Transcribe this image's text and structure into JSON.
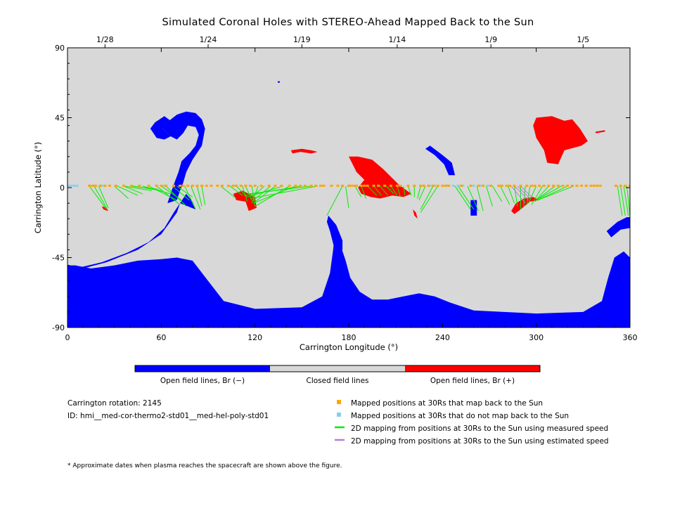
{
  "chart_data": {
    "type": "scatter",
    "title": "Simulated Coronal Holes with STEREO-Ahead Mapped Back to the Sun",
    "xlabel": "Carrington Longitude (°)",
    "ylabel": "Carrington Latitude (°)",
    "xlim": [
      0,
      360
    ],
    "ylim": [
      -90,
      90
    ],
    "x_ticks": [
      0,
      60,
      120,
      180,
      240,
      300,
      360
    ],
    "y_ticks": [
      -90,
      -45,
      0,
      45,
      90
    ],
    "top_axis": {
      "ticks": [
        {
          "x": 24,
          "label": "1/28"
        },
        {
          "x": 90,
          "label": "1/24"
        },
        {
          "x": 150,
          "label": "1/19"
        },
        {
          "x": 211,
          "label": "1/14"
        },
        {
          "x": 271,
          "label": "1/9"
        },
        {
          "x": 330,
          "label": "1/5"
        }
      ]
    },
    "colors": {
      "open_negative": "#0000ff",
      "closed": "#d8d8d8",
      "open_positive": "#ff0000",
      "mapped": "#ffa500",
      "unmapped": "#87ceeb",
      "measured_line": "#00ee00",
      "estimated_line": "#b57edc"
    },
    "regions": [
      {
        "name": "south-polar-hole",
        "polarity": "negative",
        "points": [
          [
            0,
            -90
          ],
          [
            360,
            -90
          ],
          [
            360,
            -45
          ],
          [
            356,
            -41
          ],
          [
            350,
            -45
          ],
          [
            346,
            -58
          ],
          [
            342,
            -73
          ],
          [
            330,
            -80
          ],
          [
            300,
            -81
          ],
          [
            260,
            -79
          ],
          [
            245,
            -74
          ],
          [
            235,
            -70
          ],
          [
            225,
            -68
          ],
          [
            215,
            -70
          ],
          [
            205,
            -72
          ],
          [
            195,
            -72
          ],
          [
            187,
            -67
          ],
          [
            181,
            -58
          ],
          [
            178,
            -47
          ],
          [
            174,
            -35
          ],
          [
            171,
            -30
          ],
          [
            170,
            -40
          ],
          [
            168,
            -55
          ],
          [
            163,
            -70
          ],
          [
            150,
            -77
          ],
          [
            120,
            -78
          ],
          [
            100,
            -73
          ],
          [
            90,
            -60
          ],
          [
            80,
            -47
          ],
          [
            70,
            -45
          ],
          [
            60,
            -46
          ],
          [
            45,
            -47
          ],
          [
            30,
            -50
          ],
          [
            15,
            -52
          ],
          [
            5,
            -50
          ],
          [
            0,
            -50
          ]
        ]
      },
      {
        "name": "south-hole-extension",
        "polarity": "negative",
        "points": [
          [
            5,
            -52
          ],
          [
            22,
            -48
          ],
          [
            38,
            -42
          ],
          [
            52,
            -35
          ],
          [
            62,
            -26
          ],
          [
            68,
            -16
          ],
          [
            72,
            -10
          ],
          [
            76,
            -4
          ],
          [
            80,
            -9
          ],
          [
            82,
            -14
          ],
          [
            77,
            -12
          ],
          [
            72,
            -10
          ],
          [
            70,
            -16
          ],
          [
            60,
            -30
          ],
          [
            45,
            -40
          ],
          [
            25,
            -48
          ],
          [
            10,
            -52
          ]
        ]
      },
      {
        "name": "west-hole-body",
        "polarity": "negative",
        "points": [
          [
            64,
            -10
          ],
          [
            68,
            2
          ],
          [
            71,
            10
          ],
          [
            73,
            17
          ],
          [
            78,
            22
          ],
          [
            82,
            27
          ],
          [
            84,
            34
          ],
          [
            82,
            39
          ],
          [
            77,
            40
          ],
          [
            74,
            35
          ],
          [
            70,
            31
          ],
          [
            66,
            33
          ],
          [
            61,
            38
          ],
          [
            65,
            43
          ],
          [
            70,
            47
          ],
          [
            76,
            49
          ],
          [
            82,
            48
          ],
          [
            86,
            44
          ],
          [
            88,
            38
          ],
          [
            86,
            27
          ],
          [
            80,
            18
          ],
          [
            76,
            10
          ],
          [
            74,
            3
          ],
          [
            72,
            -2
          ],
          [
            70,
            -8
          ]
        ]
      },
      {
        "name": "west-hole-lobe",
        "polarity": "negative",
        "points": [
          [
            62,
            46
          ],
          [
            56,
            42
          ],
          [
            53,
            38
          ],
          [
            57,
            32
          ],
          [
            62,
            31
          ],
          [
            66,
            33
          ],
          [
            61,
            38
          ],
          [
            66,
            43
          ]
        ]
      },
      {
        "name": "small-hole-near-55",
        "polarity": "negative",
        "points": [
          [
            232,
            27
          ],
          [
            240,
            21
          ],
          [
            246,
            16
          ],
          [
            248,
            8
          ],
          [
            244,
            8
          ],
          [
            241,
            15
          ],
          [
            235,
            21
          ],
          [
            229,
            25
          ]
        ]
      },
      {
        "name": "small-hole-near-70",
        "polarity": "negative",
        "points": [
          [
            258,
            -8
          ],
          [
            262,
            -8
          ],
          [
            262,
            -18
          ],
          [
            258,
            -18
          ]
        ]
      },
      {
        "name": "east-south-arm",
        "polarity": "negative",
        "points": [
          [
            345,
            -28
          ],
          [
            352,
            -22
          ],
          [
            358,
            -19
          ],
          [
            360,
            -19
          ],
          [
            360,
            -26
          ],
          [
            354,
            -27
          ],
          [
            348,
            -32
          ]
        ]
      },
      {
        "name": "mid-arm-to-south",
        "polarity": "negative",
        "points": [
          [
            167,
            -18
          ],
          [
            172,
            -24
          ],
          [
            176,
            -34
          ],
          [
            176,
            -40
          ],
          [
            172,
            -44
          ],
          [
            170,
            -36
          ],
          [
            168,
            -28
          ],
          [
            166,
            -22
          ]
        ]
      },
      {
        "name": "northeast-hole",
        "polarity": "positive",
        "points": [
          [
            300,
            45
          ],
          [
            310,
            46
          ],
          [
            318,
            43
          ],
          [
            323,
            44
          ],
          [
            328,
            38
          ],
          [
            333,
            30
          ],
          [
            329,
            27
          ],
          [
            318,
            24
          ],
          [
            314,
            15
          ],
          [
            307,
            16
          ],
          [
            305,
            24
          ],
          [
            300,
            32
          ],
          [
            298,
            40
          ]
        ]
      },
      {
        "name": "central-hole",
        "polarity": "positive",
        "points": [
          [
            180,
            20
          ],
          [
            186,
            20
          ],
          [
            195,
            18
          ],
          [
            202,
            12
          ],
          [
            208,
            6
          ],
          [
            212,
            2
          ],
          [
            216,
            -1
          ],
          [
            220,
            -4
          ],
          [
            215,
            -6
          ],
          [
            208,
            -5
          ],
          [
            200,
            -7
          ],
          [
            194,
            -6
          ],
          [
            188,
            -4
          ],
          [
            186,
            0
          ],
          [
            190,
            5
          ],
          [
            185,
            10
          ]
        ]
      },
      {
        "name": "hole-near-120",
        "polarity": "positive",
        "points": [
          [
            106,
            -4
          ],
          [
            112,
            -2
          ],
          [
            116,
            -4
          ],
          [
            120,
            -6
          ],
          [
            121,
            -13
          ],
          [
            116,
            -15
          ],
          [
            114,
            -9
          ],
          [
            108,
            -8
          ]
        ]
      },
      {
        "name": "hole-near-290",
        "polarity": "positive",
        "points": [
          [
            284,
            -15
          ],
          [
            287,
            -10
          ],
          [
            292,
            -7
          ],
          [
            298,
            -6
          ],
          [
            302,
            -8
          ],
          [
            296,
            -9
          ],
          [
            290,
            -14
          ],
          [
            286,
            -17
          ]
        ]
      },
      {
        "name": "streak-near-150",
        "polarity": "positive",
        "points": [
          [
            143,
            24
          ],
          [
            150,
            25
          ],
          [
            156,
            24
          ],
          [
            160,
            23
          ],
          [
            156,
            22
          ],
          [
            149,
            23
          ],
          [
            144,
            22
          ]
        ]
      },
      {
        "name": "streak-near-225",
        "polarity": "positive",
        "points": [
          [
            221,
            -14
          ],
          [
            223,
            -16
          ],
          [
            224,
            -20
          ],
          [
            222,
            -18
          ]
        ]
      },
      {
        "name": "streak-near-25",
        "polarity": "positive",
        "points": [
          [
            22,
            -12
          ],
          [
            25,
            -13
          ],
          [
            26,
            -15
          ],
          [
            23,
            -14
          ]
        ]
      },
      {
        "name": "wisp-near-345",
        "polarity": "positive",
        "points": [
          [
            338,
            36
          ],
          [
            344,
            37
          ],
          [
            344,
            36
          ],
          [
            338,
            35
          ]
        ]
      }
    ],
    "mapped_points_lat": 1,
    "mapped_points_x": [
      14,
      16,
      18,
      21,
      24,
      27,
      31,
      36,
      41,
      46,
      52,
      57,
      60,
      63,
      68,
      72,
      74,
      77,
      80,
      83,
      86,
      89,
      92,
      96,
      99,
      103,
      106,
      108,
      111,
      114,
      117,
      120,
      124,
      129,
      133,
      137,
      142,
      146,
      149,
      152,
      156,
      159,
      162,
      164,
      169,
      173,
      176,
      180,
      181,
      183,
      185,
      188,
      190,
      192,
      196,
      199,
      203,
      207,
      211,
      213,
      218,
      222,
      226,
      228,
      231,
      234,
      237,
      240,
      242,
      244,
      252,
      258,
      263,
      266,
      271,
      276,
      278,
      281,
      283,
      286,
      290,
      294,
      297,
      299,
      302,
      305,
      308,
      311,
      314,
      317,
      320,
      323,
      326,
      329,
      332,
      335,
      337,
      339,
      341,
      351,
      354,
      357,
      360
    ],
    "unmapped_points_x": [
      0,
      2,
      4,
      6,
      17,
      22,
      62,
      226,
      232,
      235,
      243,
      247,
      250,
      253,
      260,
      264,
      269
    ],
    "mappings_measured": [
      [
        14,
        25,
        -14
      ],
      [
        17,
        25,
        -13
      ],
      [
        20,
        26,
        -13
      ],
      [
        30,
        39,
        -7
      ],
      [
        32,
        45,
        -5
      ],
      [
        36,
        48,
        -4
      ],
      [
        36,
        54,
        -2
      ],
      [
        40,
        58,
        -1
      ],
      [
        42,
        60,
        -2
      ],
      [
        48,
        66,
        -4
      ],
      [
        52,
        70,
        -8
      ],
      [
        57,
        72,
        -11
      ],
      [
        60,
        73,
        -8
      ],
      [
        63,
        76,
        -12
      ],
      [
        67,
        78,
        -8
      ],
      [
        70,
        80,
        -6
      ],
      [
        75,
        82,
        -14
      ],
      [
        79,
        85,
        -14
      ],
      [
        83,
        86,
        -12
      ],
      [
        86,
        88,
        -11
      ],
      [
        98,
        108,
        -7
      ],
      [
        104,
        112,
        -5
      ],
      [
        108,
        115,
        -6
      ],
      [
        112,
        115,
        -9
      ],
      [
        114,
        118,
        -8
      ],
      [
        118,
        120,
        -12
      ],
      [
        122,
        118,
        -10
      ],
      [
        126,
        118,
        -6
      ],
      [
        130,
        118,
        -9
      ],
      [
        133,
        119,
        -10
      ],
      [
        138,
        115,
        -6
      ],
      [
        142,
        120,
        -12
      ],
      [
        146,
        119,
        -10
      ],
      [
        150,
        113,
        -5
      ],
      [
        156,
        116,
        -4
      ],
      [
        160,
        117,
        -7
      ],
      [
        176,
        166,
        -18
      ],
      [
        178,
        180,
        -13
      ],
      [
        184,
        188,
        -6
      ],
      [
        188,
        191,
        -7
      ],
      [
        192,
        198,
        -5
      ],
      [
        196,
        201,
        -5
      ],
      [
        200,
        205,
        -5
      ],
      [
        204,
        209,
        -4
      ],
      [
        207,
        211,
        -5
      ],
      [
        211,
        213,
        -6
      ],
      [
        215,
        216,
        -5
      ],
      [
        218,
        220,
        -5
      ],
      [
        222,
        222,
        -6
      ],
      [
        226,
        224,
        -7
      ],
      [
        229,
        225,
        -8
      ],
      [
        234,
        226,
        -14
      ],
      [
        237,
        226,
        -16
      ],
      [
        248,
        258,
        -14
      ],
      [
        250,
        260,
        -14
      ],
      [
        256,
        263,
        -15
      ],
      [
        262,
        266,
        -15
      ],
      [
        268,
        272,
        -12
      ],
      [
        272,
        278,
        -9
      ],
      [
        277,
        283,
        -11
      ],
      [
        282,
        286,
        -10
      ],
      [
        286,
        288,
        -12
      ],
      [
        290,
        290,
        -14
      ],
      [
        293,
        292,
        -12
      ],
      [
        296,
        294,
        -11
      ],
      [
        300,
        295,
        -10
      ],
      [
        304,
        297,
        -11
      ],
      [
        308,
        299,
        -9
      ],
      [
        312,
        300,
        -8
      ],
      [
        316,
        300,
        -8
      ],
      [
        320,
        301,
        -8
      ],
      [
        324,
        301,
        -8
      ],
      [
        352,
        355,
        -18
      ],
      [
        354,
        357,
        -18
      ],
      [
        356,
        359,
        -18
      ],
      [
        358,
        360,
        -18
      ]
    ],
    "mappings_estimated": [
      [
        284,
        293,
        -10
      ],
      [
        286,
        295,
        -8
      ],
      [
        288,
        296,
        -7
      ],
      [
        290,
        297,
        -6
      ]
    ]
  },
  "colorbar": {
    "segments": [
      {
        "label": "Open field lines, Br (−)",
        "color": "#0000ff"
      },
      {
        "label": "Closed field lines",
        "color": "#d8d8d8"
      },
      {
        "label": "Open field lines, Br (+)",
        "color": "#ff0000"
      }
    ]
  },
  "info": {
    "rotation": "Carrington rotation: 2145",
    "id": "ID: hmi__med-cor-thermo2-std01__med-hel-poly-std01"
  },
  "legend": [
    {
      "kind": "square",
      "color": "#ffa500",
      "label": "Mapped positions at 30Rs that map back to the Sun"
    },
    {
      "kind": "square",
      "color": "#87ceeb",
      "label": "Mapped positions at 30Rs that do not map back to the Sun"
    },
    {
      "kind": "line",
      "color": "#00ee00",
      "label": "2D mapping from positions at 30Rs to the Sun using measured speed"
    },
    {
      "kind": "line",
      "color": "#b57edc",
      "label": "2D mapping from positions at 30Rs to the Sun using estimated speed"
    }
  ],
  "footnote": "* Approximate dates when plasma reaches the spacecraft are shown above the figure."
}
